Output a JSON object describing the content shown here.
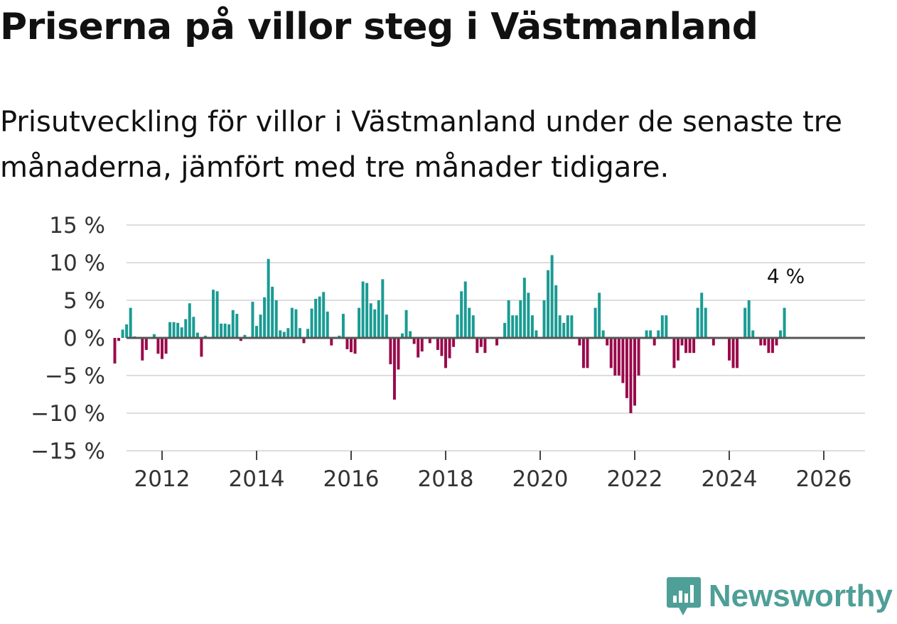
{
  "title": "Priserna på villor steg i Västmanland",
  "subtitle": "Prisutveckling för villor i Västmanland under de senaste tre månaderna, jämfört med tre månader tidigare.",
  "brand": {
    "name": "Newsworthy"
  },
  "colors": {
    "positive": "#1a9b93",
    "negative": "#990a4b",
    "grid": "#dddddd",
    "axis": "#555555"
  },
  "chart_data": {
    "type": "bar",
    "title": "",
    "xlabel": "",
    "ylabel": "",
    "ylim": [
      -15,
      15
    ],
    "y_ticks": [
      15,
      10,
      5,
      0,
      -5,
      -10,
      -15
    ],
    "y_tick_labels": [
      "15 %",
      "10 %",
      "5 %",
      "0 %",
      "−5 %",
      "−10 %",
      "−15 %"
    ],
    "x_ticks": [
      2012,
      2014,
      2016,
      2018,
      2020,
      2022,
      2024,
      2026
    ],
    "x_tick_labels": [
      "2012",
      "2014",
      "2016",
      "2018",
      "2020",
      "2022",
      "2024",
      "2026"
    ],
    "x_start": "2011-01",
    "annotation": {
      "label": "4 %",
      "target": "last"
    },
    "series": [
      {
        "name": "Prisutveckling",
        "values": [
          -3.4,
          -0.4,
          1.1,
          1.8,
          4.0,
          0.2,
          0.1,
          -3.0,
          -1.6,
          0.0,
          0.5,
          -2.1,
          -2.8,
          -2.1,
          2.1,
          2.1,
          2.0,
          1.4,
          2.5,
          4.6,
          2.8,
          0.7,
          -2.5,
          0.3,
          0.0,
          6.4,
          6.2,
          1.9,
          1.9,
          1.8,
          3.7,
          3.2,
          -0.4,
          0.4,
          0.0,
          4.8,
          1.6,
          3.1,
          5.4,
          10.5,
          6.8,
          5.0,
          1.0,
          0.8,
          1.3,
          4.0,
          3.8,
          1.3,
          -0.7,
          1.2,
          3.9,
          5.2,
          5.5,
          6.1,
          3.5,
          -1.0,
          0.0,
          0.3,
          3.2,
          -1.5,
          -1.9,
          -2.1,
          4.0,
          7.5,
          7.3,
          4.6,
          3.8,
          5.0,
          7.8,
          3.1,
          -3.5,
          -8.2,
          -4.2,
          0.6,
          3.7,
          0.9,
          -0.8,
          -2.6,
          -1.8,
          0.0,
          -0.7,
          0.0,
          -1.6,
          -2.4,
          -4.0,
          -2.7,
          -1.2,
          3.1,
          6.2,
          7.5,
          4.0,
          3.0,
          -2.0,
          -1.2,
          -2.0,
          0.0,
          0.0,
          -1.0,
          0.0,
          2.0,
          5.0,
          3.0,
          3.0,
          5.0,
          8.0,
          6.0,
          3.0,
          1.0,
          0.0,
          5.0,
          9.0,
          11.0,
          7.0,
          3.0,
          2.0,
          3.0,
          3.0,
          0.0,
          -1.0,
          -4.0,
          -4.0,
          0.0,
          4.0,
          6.0,
          1.0,
          -1.0,
          -4.0,
          -5.0,
          -5.0,
          -6.0,
          -8.0,
          -10.0,
          -9.0,
          -5.0,
          0.0,
          1.0,
          1.0,
          -1.0,
          1.0,
          3.0,
          3.0,
          0.0,
          -4.0,
          -3.0,
          -1.0,
          -2.0,
          -2.0,
          -2.0,
          4.0,
          6.0,
          4.0,
          0.0,
          -1.0,
          0.0,
          0.0,
          0.0,
          -3.0,
          -4.0,
          -4.0,
          0.0,
          4.0,
          5.0,
          1.0,
          0.0,
          -1.0,
          -1.0,
          -2.0,
          -2.0,
          -1.0,
          1.0,
          4.0
        ]
      }
    ]
  }
}
